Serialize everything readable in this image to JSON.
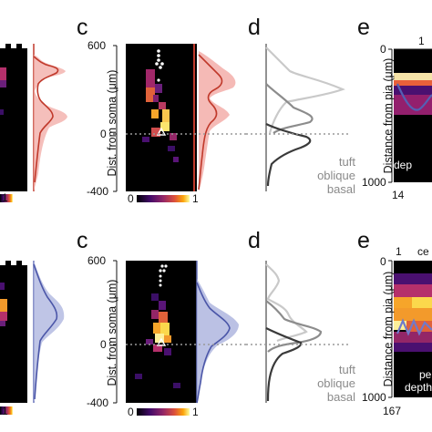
{
  "rows": [
    {
      "color": "#d9534f",
      "panel_c": {
        "letter": "c",
        "ylabel": "Dist. from soma (μm)",
        "ticks": [
          "600",
          "0",
          "-400"
        ]
      },
      "colorbar": {
        "min": "0",
        "max": "1",
        "left_max": "1"
      },
      "panel_d": {
        "letter": "d",
        "legend": [
          "tuft",
          "oblique",
          "basal"
        ]
      },
      "panel_e": {
        "letter": "e",
        "ylabel": "Distance from pia (μm)",
        "top_tick": "1",
        "ticks": [
          "0",
          "1000"
        ],
        "bottom_label": "14",
        "overlay_text": "dep"
      }
    },
    {
      "color": "#6670b8",
      "panel_c": {
        "letter": "c",
        "ylabel": "Dist. from soma (μm)",
        "ticks": [
          "600",
          "0",
          "-400"
        ]
      },
      "colorbar": {
        "min": "0",
        "max": "1",
        "left_max": "1"
      },
      "panel_d": {
        "letter": "d",
        "legend": [
          "tuft",
          "oblique",
          "basal"
        ]
      },
      "panel_e": {
        "letter": "e",
        "ylabel": "Distance from pia (μm)",
        "top_tick": "1",
        "top_extra": "ce",
        "ticks": [
          "0",
          "1000"
        ],
        "bottom_label": "167",
        "overlay_text": [
          "pe",
          "depth"
        ]
      }
    }
  ],
  "colors": {
    "heat_dark": "#000000",
    "heat_bright": "#f9e25a",
    "blue_line": "#4b56a8",
    "red_line": "#c0392b",
    "gray_tuft": "#c9c9c9",
    "gray_oblique": "#8c8c8c",
    "gray_basal": "#3a3a3a"
  }
}
